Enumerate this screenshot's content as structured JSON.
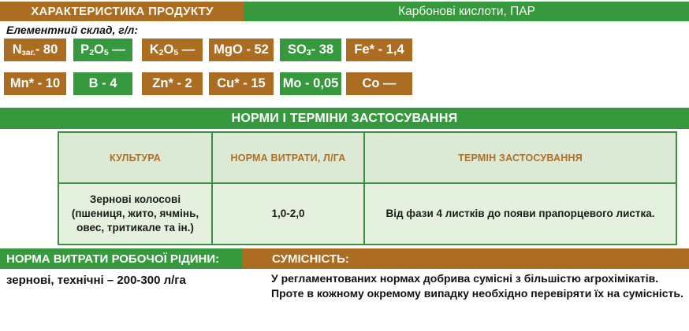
{
  "colors": {
    "brown": "#ab6d22",
    "green": "#36993e",
    "table_border": "#3e8e41",
    "table_header_bg": "#dbe9d5",
    "table_body_bg": "#e5f1df",
    "table_header_text": "#a9712c"
  },
  "header": {
    "left_title": "ХАРАКТЕРИСТИКА ПРОДУКТУ",
    "right_title": "Карбонові кислоти, ПАР"
  },
  "composition": {
    "label": "Елементний склад, г/л:",
    "badges": [
      {
        "m1": "N",
        "s1": "заг.",
        "m2": "",
        "s2": "",
        "tail": "- 80",
        "color": "brown"
      },
      {
        "m1": "P",
        "s1": "2",
        "m2": "O",
        "s2": "5",
        "tail": " —",
        "color": "green"
      },
      {
        "m1": "K",
        "s1": "2",
        "m2": "O",
        "s2": "5",
        "tail": " —",
        "color": "brown"
      },
      {
        "m1": "MgO",
        "s1": "",
        "m2": "",
        "s2": "",
        "tail": " - 52",
        "color": "brown"
      },
      {
        "m1": "SO",
        "s1": "3",
        "m2": "",
        "s2": "",
        "tail": "- 38",
        "color": "green"
      },
      {
        "m1": "Fe*",
        "s1": "",
        "m2": "",
        "s2": "",
        "tail": " - 1,4",
        "color": "brown"
      },
      {
        "m1": "Mn*",
        "s1": "",
        "m2": "",
        "s2": "",
        "tail": " - 10",
        "color": "brown"
      },
      {
        "m1": "B",
        "s1": "",
        "m2": "",
        "s2": "",
        "tail": " - 4",
        "color": "green"
      },
      {
        "m1": "Zn*",
        "s1": "",
        "m2": "",
        "s2": "",
        "tail": " - 2",
        "color": "brown"
      },
      {
        "m1": "Cu*",
        "s1": "",
        "m2": "",
        "s2": "",
        "tail": " - 15",
        "color": "brown"
      },
      {
        "m1": "Mo",
        "s1": "",
        "m2": "",
        "s2": "",
        "tail": " - 0,05",
        "color": "green"
      },
      {
        "m1": "Co",
        "s1": "",
        "m2": "",
        "s2": "",
        "tail": " —",
        "color": "brown"
      }
    ]
  },
  "norms": {
    "section_title": "НОРМИ І ТЕРМІНИ ЗАСТОСУВАННЯ",
    "headers": {
      "culture": "КУЛЬТУРА",
      "rate": "НОРМА ВИТРАТИ, Л/ГА",
      "term": "ТЕРМІН ЗАСТОСУВАННЯ"
    },
    "rows": [
      {
        "culture": "Зернові колосові\n(пшениця, жито, ячмінь,\nовес, тритикале та ін.)",
        "rate": "1,0-2,0",
        "term": "Від фази 4 листків до появи прапорцевого листка."
      }
    ]
  },
  "bottom": {
    "left_bar": "НОРМА ВИТРАТИ РОБОЧОЇ РІДИНИ:",
    "left_text": "зернові, технічні – 200-300 л/га",
    "right_bar": "СУМІСНІСТЬ:",
    "right_text_line1": "У регламентованих нормах добрива сумісні з більшістю агрохімікатів.",
    "right_text_line2": "Проте в кожному окремому випадку необхідно перевіряти їх на сумісність."
  }
}
